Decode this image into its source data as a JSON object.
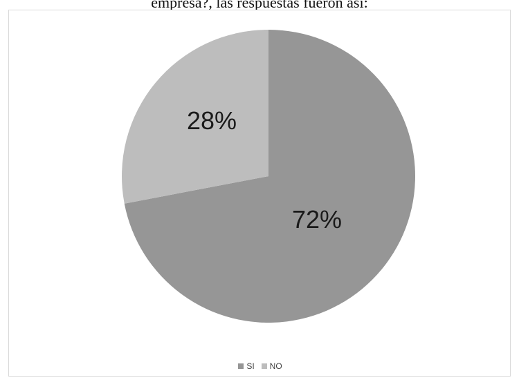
{
  "caption": "empresa?, las respuestas fueron así:",
  "chart_data": {
    "type": "pie",
    "categories": [
      "SI",
      "NO"
    ],
    "values": [
      72,
      28
    ],
    "labels": [
      "72%",
      "28%"
    ],
    "colors": [
      "#969696",
      "#bdbdbd"
    ],
    "start_angle": "12 o'clock",
    "direction": "clockwise",
    "legend": {
      "position": "bottom",
      "entries": [
        "SI",
        "NO"
      ]
    }
  }
}
